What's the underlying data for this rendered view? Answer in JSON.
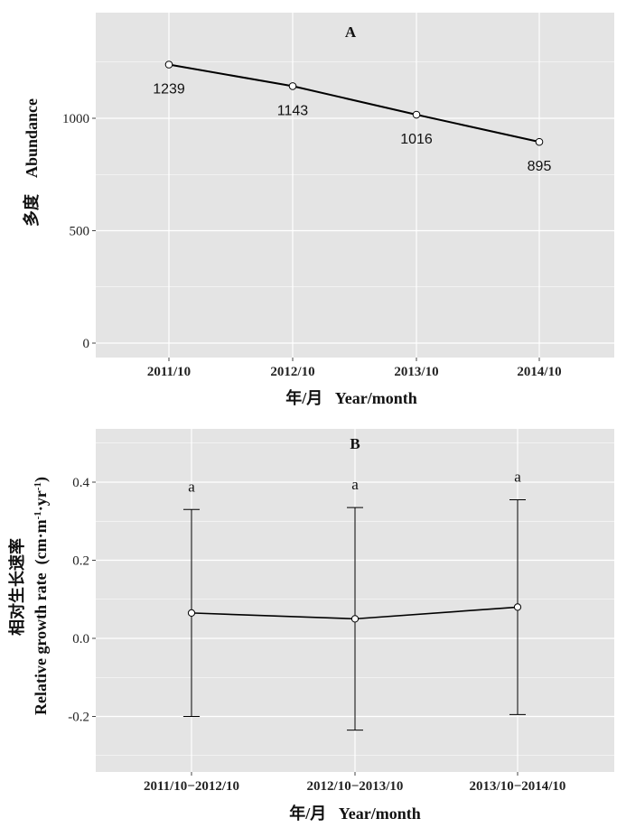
{
  "chart_data": [
    {
      "type": "line",
      "panel_label": "A",
      "categories": [
        "2011/10",
        "2012/10",
        "2013/10",
        "2014/10"
      ],
      "values": [
        1239,
        1143,
        1016,
        895
      ],
      "data_labels": [
        "1239",
        "1143",
        "1016",
        "895"
      ],
      "xlabel": "年/月   Year/month",
      "ylabel": "多度    Abundance",
      "yticks": [
        "0",
        "500",
        "1000"
      ],
      "ylim": [
        -80,
        1450
      ],
      "grid": true,
      "colors": {
        "panel_bg": "#e4e4e4",
        "grid": "#ffffff",
        "line": "#000000",
        "marker_fill": "#ffffff"
      }
    },
    {
      "type": "line",
      "panel_label": "B",
      "categories": [
        "2011/10−2012/10",
        "2012/10−2013/10",
        "2013/10−2014/10"
      ],
      "values": [
        0.065,
        0.05,
        0.08
      ],
      "error_upper": [
        0.33,
        0.335,
        0.355
      ],
      "error_lower": [
        -0.2,
        -0.235,
        -0.195
      ],
      "significance": [
        "a",
        "a",
        "a"
      ],
      "xlabel": "年/月   Year/month",
      "ylabel_cn": "相对生长速率",
      "ylabel_en": "Relative growth rate  (cm·m",
      "yticks": [
        "-0.2",
        "0.0",
        "0.2",
        "0.4"
      ],
      "ylim": [
        -0.34,
        0.53
      ],
      "grid": true,
      "colors": {
        "panel_bg": "#e4e4e4",
        "grid": "#ffffff",
        "line": "#000000",
        "marker_fill": "#ffffff"
      }
    }
  ]
}
